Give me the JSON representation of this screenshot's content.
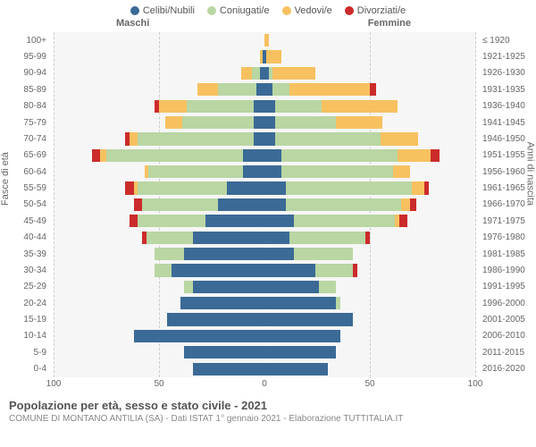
{
  "legend": [
    {
      "label": "Celibi/Nubili",
      "color": "#3b6a96"
    },
    {
      "label": "Coniugati/e",
      "color": "#b9d6a3"
    },
    {
      "label": "Vedovi/e",
      "color": "#f7c160"
    },
    {
      "label": "Divorziati/e",
      "color": "#cc2b2b"
    }
  ],
  "headers": {
    "male": "Maschi",
    "female": "Femmine"
  },
  "axis_titles": {
    "left": "Fasce di età",
    "right": "Anni di nascita"
  },
  "x": {
    "max": 100,
    "ticks": [
      100,
      50,
      0,
      50,
      100
    ]
  },
  "colors": {
    "celibi": "#3b6a96",
    "coniugati": "#b9d6a3",
    "vedovi": "#f7c160",
    "divorziati": "#cc2b2b",
    "plot_bg": "#f6f6f6",
    "grid": "#cccccc",
    "center": "#ffffff"
  },
  "title": "Popolazione per età, sesso e stato civile - 2021",
  "source": "COMUNE DI MONTANO ANTILIA (SA) - Dati ISTAT 1° gennaio 2021 - Elaborazione TUTTITALIA.IT",
  "rows": [
    {
      "age": "100+",
      "birth": "≤ 1920",
      "m": {
        "c": 0,
        "k": 0,
        "v": 0,
        "d": 0
      },
      "f": {
        "c": 0,
        "k": 0,
        "v": 2,
        "d": 0
      }
    },
    {
      "age": "95-99",
      "birth": "1921-1925",
      "m": {
        "c": 1,
        "k": 0,
        "v": 1,
        "d": 0
      },
      "f": {
        "c": 1,
        "k": 0,
        "v": 7,
        "d": 0
      }
    },
    {
      "age": "90-94",
      "birth": "1926-1930",
      "m": {
        "c": 2,
        "k": 4,
        "v": 5,
        "d": 0
      },
      "f": {
        "c": 2,
        "k": 2,
        "v": 20,
        "d": 0
      }
    },
    {
      "age": "85-89",
      "birth": "1931-1935",
      "m": {
        "c": 4,
        "k": 18,
        "v": 10,
        "d": 0
      },
      "f": {
        "c": 4,
        "k": 8,
        "v": 38,
        "d": 3
      }
    },
    {
      "age": "80-84",
      "birth": "1936-1940",
      "m": {
        "c": 5,
        "k": 32,
        "v": 13,
        "d": 2
      },
      "f": {
        "c": 5,
        "k": 22,
        "v": 36,
        "d": 0
      }
    },
    {
      "age": "75-79",
      "birth": "1941-1945",
      "m": {
        "c": 5,
        "k": 34,
        "v": 8,
        "d": 0
      },
      "f": {
        "c": 5,
        "k": 29,
        "v": 22,
        "d": 0
      }
    },
    {
      "age": "70-74",
      "birth": "1946-1950",
      "m": {
        "c": 5,
        "k": 55,
        "v": 4,
        "d": 2
      },
      "f": {
        "c": 5,
        "k": 50,
        "v": 18,
        "d": 0
      }
    },
    {
      "age": "65-69",
      "birth": "1951-1955",
      "m": {
        "c": 10,
        "k": 65,
        "v": 3,
        "d": 4
      },
      "f": {
        "c": 8,
        "k": 55,
        "v": 16,
        "d": 4
      }
    },
    {
      "age": "60-64",
      "birth": "1956-1960",
      "m": {
        "c": 10,
        "k": 45,
        "v": 2,
        "d": 0
      },
      "f": {
        "c": 8,
        "k": 53,
        "v": 8,
        "d": 0
      }
    },
    {
      "age": "55-59",
      "birth": "1961-1965",
      "m": {
        "c": 18,
        "k": 42,
        "v": 2,
        "d": 4
      },
      "f": {
        "c": 10,
        "k": 60,
        "v": 6,
        "d": 2
      }
    },
    {
      "age": "50-54",
      "birth": "1966-1970",
      "m": {
        "c": 22,
        "k": 36,
        "v": 0,
        "d": 4
      },
      "f": {
        "c": 10,
        "k": 55,
        "v": 4,
        "d": 3
      }
    },
    {
      "age": "45-49",
      "birth": "1971-1975",
      "m": {
        "c": 28,
        "k": 32,
        "v": 0,
        "d": 4
      },
      "f": {
        "c": 14,
        "k": 48,
        "v": 2,
        "d": 4
      }
    },
    {
      "age": "40-44",
      "birth": "1976-1980",
      "m": {
        "c": 34,
        "k": 22,
        "v": 0,
        "d": 2
      },
      "f": {
        "c": 12,
        "k": 36,
        "v": 0,
        "d": 2
      }
    },
    {
      "age": "35-39",
      "birth": "1981-1985",
      "m": {
        "c": 38,
        "k": 14,
        "v": 0,
        "d": 0
      },
      "f": {
        "c": 14,
        "k": 28,
        "v": 0,
        "d": 0
      }
    },
    {
      "age": "30-34",
      "birth": "1986-1990",
      "m": {
        "c": 44,
        "k": 8,
        "v": 0,
        "d": 0
      },
      "f": {
        "c": 24,
        "k": 18,
        "v": 0,
        "d": 2
      }
    },
    {
      "age": "25-29",
      "birth": "1991-1995",
      "m": {
        "c": 34,
        "k": 4,
        "v": 0,
        "d": 0
      },
      "f": {
        "c": 26,
        "k": 8,
        "v": 0,
        "d": 0
      }
    },
    {
      "age": "20-24",
      "birth": "1996-2000",
      "m": {
        "c": 40,
        "k": 0,
        "v": 0,
        "d": 0
      },
      "f": {
        "c": 34,
        "k": 2,
        "v": 0,
        "d": 0
      }
    },
    {
      "age": "15-19",
      "birth": "2001-2005",
      "m": {
        "c": 46,
        "k": 0,
        "v": 0,
        "d": 0
      },
      "f": {
        "c": 42,
        "k": 0,
        "v": 0,
        "d": 0
      }
    },
    {
      "age": "10-14",
      "birth": "2006-2010",
      "m": {
        "c": 62,
        "k": 0,
        "v": 0,
        "d": 0
      },
      "f": {
        "c": 36,
        "k": 0,
        "v": 0,
        "d": 0
      }
    },
    {
      "age": "5-9",
      "birth": "2011-2015",
      "m": {
        "c": 38,
        "k": 0,
        "v": 0,
        "d": 0
      },
      "f": {
        "c": 34,
        "k": 0,
        "v": 0,
        "d": 0
      }
    },
    {
      "age": "0-4",
      "birth": "2016-2020",
      "m": {
        "c": 34,
        "k": 0,
        "v": 0,
        "d": 0
      },
      "f": {
        "c": 30,
        "k": 0,
        "v": 0,
        "d": 0
      }
    }
  ]
}
